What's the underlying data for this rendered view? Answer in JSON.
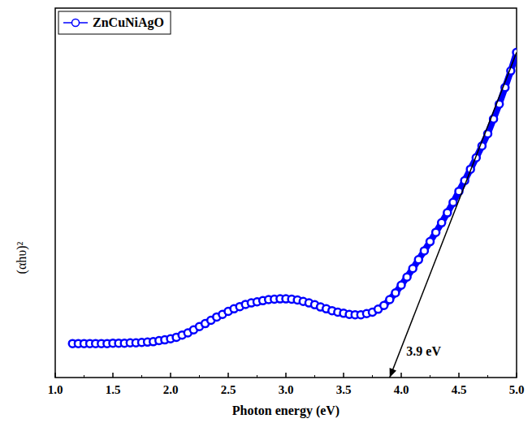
{
  "chart_data": {
    "type": "scatter",
    "x_label": "Photon energy (eV)",
    "y_label": "(αhυ)²",
    "xlim": [
      1.0,
      5.0
    ],
    "xticks": [
      {
        "value": 1.0,
        "label": "1.0"
      },
      {
        "value": 1.5,
        "label": "1.5"
      },
      {
        "value": 2.0,
        "label": "2.0"
      },
      {
        "value": 2.5,
        "label": "2.5"
      },
      {
        "value": 3.0,
        "label": "3.0"
      },
      {
        "value": 3.5,
        "label": "3.5"
      },
      {
        "value": 4.0,
        "label": "4.0"
      },
      {
        "value": 4.5,
        "label": "4.5"
      },
      {
        "value": 5.0,
        "label": "5.0"
      }
    ],
    "ylim": [
      0,
      100
    ],
    "yticks": [],
    "tick_labels": "x",
    "grid": false,
    "legend": "upper left",
    "series": [
      {
        "name": "ZnCuNiAgO",
        "color": "#0000ff",
        "marker": "circle",
        "line_style": "solid",
        "x": [
          1.15,
          1.2,
          1.25,
          1.3,
          1.35,
          1.4,
          1.45,
          1.5,
          1.55,
          1.6,
          1.65,
          1.7,
          1.75,
          1.8,
          1.85,
          1.9,
          1.95,
          2.0,
          2.05,
          2.1,
          2.15,
          2.2,
          2.25,
          2.3,
          2.35,
          2.4,
          2.45,
          2.5,
          2.55,
          2.6,
          2.65,
          2.7,
          2.75,
          2.8,
          2.85,
          2.9,
          2.95,
          3.0,
          3.05,
          3.1,
          3.15,
          3.2,
          3.25,
          3.3,
          3.35,
          3.4,
          3.45,
          3.5,
          3.55,
          3.6,
          3.65,
          3.7,
          3.75,
          3.8,
          3.85,
          3.9,
          3.95,
          4.0,
          4.05,
          4.1,
          4.15,
          4.2,
          4.25,
          4.3,
          4.35,
          4.4,
          4.45,
          4.5,
          4.55,
          4.6,
          4.65,
          4.7,
          4.75,
          4.8,
          4.85,
          4.9,
          4.95,
          5.0
        ],
        "values": [
          9.2,
          9.2,
          9.2,
          9.2,
          9.2,
          9.2,
          9.2,
          9.3,
          9.3,
          9.3,
          9.4,
          9.4,
          9.5,
          9.6,
          9.7,
          10.0,
          10.2,
          10.5,
          10.9,
          11.5,
          12.1,
          12.9,
          13.8,
          14.6,
          15.5,
          16.4,
          17.1,
          17.9,
          18.6,
          19.2,
          19.8,
          20.2,
          20.5,
          20.8,
          21.1,
          21.2,
          21.3,
          21.3,
          21.2,
          21.0,
          20.6,
          20.2,
          19.7,
          19.1,
          18.6,
          18.1,
          17.7,
          17.4,
          17.1,
          17.0,
          17.0,
          17.3,
          17.7,
          18.5,
          19.5,
          21.1,
          22.9,
          25.0,
          27.2,
          29.5,
          31.9,
          34.3,
          36.8,
          39.3,
          41.9,
          44.6,
          47.4,
          50.4,
          53.3,
          56.4,
          59.5,
          62.7,
          66.0,
          70.0,
          74.0,
          78.5,
          83.0,
          88.0
        ]
      }
    ],
    "fit_line": {
      "color": "#000000",
      "x": [
        3.9,
        5.0
      ],
      "values": [
        0,
        88
      ]
    },
    "annotations": [
      {
        "text": "3.9 eV",
        "x": 3.9,
        "y": 0
      }
    ]
  }
}
